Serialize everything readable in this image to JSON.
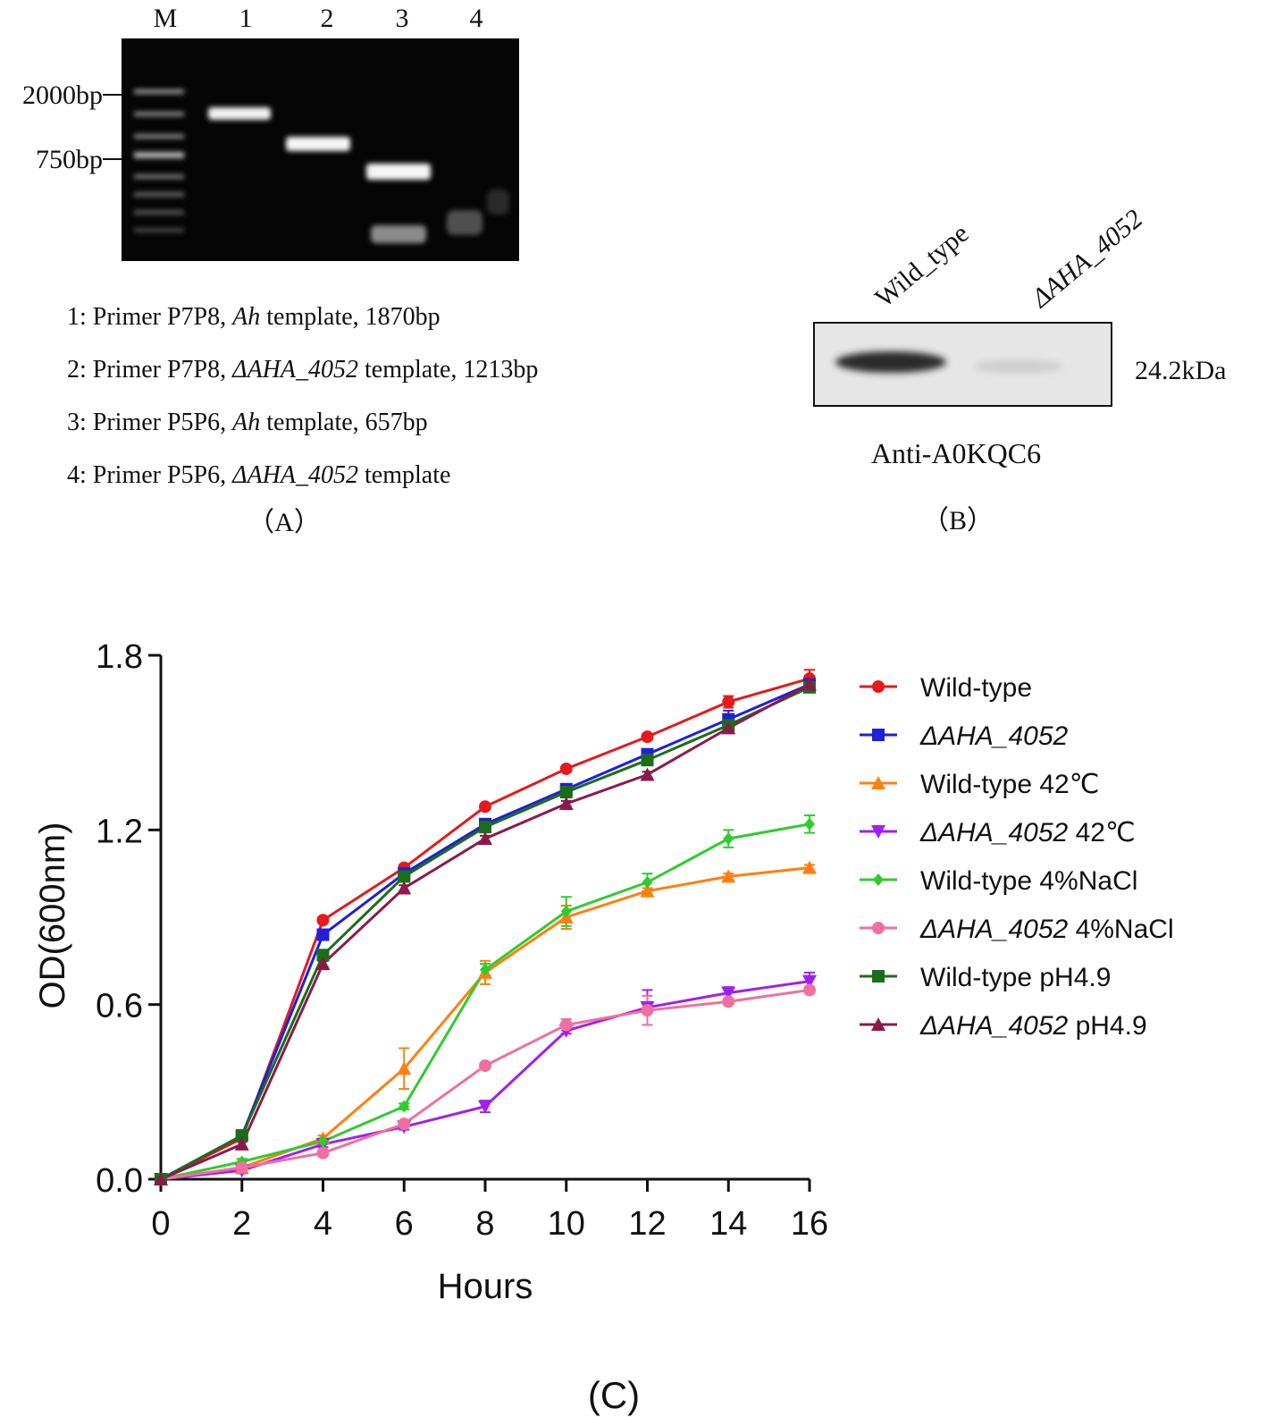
{
  "panel_a": {
    "lane_labels": [
      "M",
      "1",
      "2",
      "3",
      "4"
    ],
    "marker_labels": [
      "2000bp",
      "750bp"
    ],
    "legend": [
      {
        "prefix": "1: Primer P7P8, ",
        "italic": "Ah",
        "suffix": " template, 1870bp"
      },
      {
        "prefix": "2: Primer P7P8, ",
        "italic": "ΔAHA_4052",
        "suffix": " template, 1213bp"
      },
      {
        "prefix": "3: Primer P5P6, ",
        "italic": "Ah",
        "suffix": " template, 657bp"
      },
      {
        "prefix": "4: Primer P5P6, ",
        "italic": "ΔAHA_4052",
        "suffix": " template"
      }
    ],
    "caption": "（A）"
  },
  "panel_b": {
    "lane_labels": [
      "Wild_type",
      "ΔAHA_4052"
    ],
    "size_label": "24.2kDa",
    "antibody": "Anti-A0KQC6",
    "caption": "（B）"
  },
  "panel_c": {
    "caption": "(C)"
  },
  "chart_data": {
    "type": "line",
    "xlabel": "Hours",
    "ylabel": "OD(600nm)",
    "xlim": [
      0,
      16
    ],
    "ylim": [
      0,
      1.8
    ],
    "x_ticks": [
      0,
      2,
      4,
      6,
      8,
      10,
      12,
      14,
      16
    ],
    "y_ticks": [
      0.0,
      0.6,
      1.2,
      1.8
    ],
    "y_tick_labels": [
      "0.0",
      "0.6",
      "1.2",
      "1.8"
    ],
    "grid": false,
    "legend_position": "right",
    "x": [
      0,
      2,
      4,
      6,
      8,
      10,
      12,
      14,
      16
    ],
    "series": [
      {
        "name": "Wild-type",
        "italic": "",
        "suffix": "Wild-type",
        "color": "#e41a1c",
        "marker": "circle",
        "values": [
          0.0,
          0.14,
          0.89,
          1.07,
          1.28,
          1.41,
          1.52,
          1.64,
          1.72
        ],
        "error": [
          0,
          0.01,
          0.01,
          0.01,
          0.01,
          0.01,
          0.01,
          0.02,
          0.03
        ]
      },
      {
        "name": "ΔAHA_4052",
        "italic": "ΔAHA_4052",
        "suffix": "",
        "color": "#1f1fdc",
        "marker": "square",
        "values": [
          0.0,
          0.15,
          0.84,
          1.05,
          1.22,
          1.34,
          1.46,
          1.58,
          1.7
        ],
        "error": [
          0,
          0.01,
          0.01,
          0.01,
          0.01,
          0.01,
          0.01,
          0.03,
          0.02
        ]
      },
      {
        "name": "Wild-type 42℃",
        "italic": "",
        "suffix": "Wild-type 42℃",
        "color": "#ff7f0e",
        "marker": "triangle",
        "values": [
          0.0,
          0.04,
          0.14,
          0.38,
          0.71,
          0.9,
          0.99,
          1.04,
          1.07
        ],
        "error": [
          0,
          0.01,
          0.01,
          0.07,
          0.04,
          0.04,
          0.01,
          0.01,
          0.01
        ]
      },
      {
        "name": "ΔAHA_4052 42℃",
        "italic": "ΔAHA_4052",
        "suffix": " 42℃",
        "color": "#a020f0",
        "marker": "triangle-down",
        "values": [
          0.0,
          0.03,
          0.12,
          0.18,
          0.25,
          0.51,
          0.59,
          0.64,
          0.68
        ],
        "error": [
          0,
          0.01,
          0.01,
          0.01,
          0.02,
          0.01,
          0.06,
          0.02,
          0.03
        ]
      },
      {
        "name": "Wild-type 4%NaCl",
        "italic": "",
        "suffix": "Wild-type 4%NaCl",
        "color": "#2ecc2e",
        "marker": "diamond",
        "values": [
          0.0,
          0.06,
          0.13,
          0.25,
          0.72,
          0.92,
          1.02,
          1.17,
          1.22
        ],
        "error": [
          0,
          0.01,
          0.01,
          0.01,
          0.02,
          0.05,
          0.03,
          0.03,
          0.03
        ]
      },
      {
        "name": "ΔAHA_4052 4%NaCl",
        "italic": "ΔAHA_4052",
        "suffix": " 4%NaCl",
        "color": "#f06fa0",
        "marker": "circle",
        "values": [
          0.0,
          0.04,
          0.09,
          0.19,
          0.39,
          0.53,
          0.58,
          0.61,
          0.65
        ],
        "error": [
          0,
          0.01,
          0.01,
          0.01,
          0.01,
          0.02,
          0.05,
          0.01,
          0.01
        ]
      },
      {
        "name": "Wild-type pH4.9",
        "italic": "",
        "suffix": "Wild-type pH4.9",
        "color": "#1a6e1a",
        "marker": "square",
        "values": [
          0.0,
          0.15,
          0.77,
          1.04,
          1.21,
          1.33,
          1.44,
          1.56,
          1.69
        ],
        "error": [
          0,
          0.01,
          0.01,
          0.01,
          0.01,
          0.01,
          0.01,
          0.01,
          0.01
        ]
      },
      {
        "name": "ΔAHA_4052 pH4.9",
        "italic": "ΔAHA_4052",
        "suffix": " pH4.9",
        "color": "#8b1a4a",
        "marker": "triangle",
        "values": [
          0.0,
          0.12,
          0.74,
          1.0,
          1.17,
          1.29,
          1.39,
          1.55,
          1.7
        ],
        "error": [
          0,
          0.01,
          0.01,
          0.01,
          0.01,
          0.01,
          0.01,
          0.01,
          0.01
        ]
      }
    ]
  }
}
